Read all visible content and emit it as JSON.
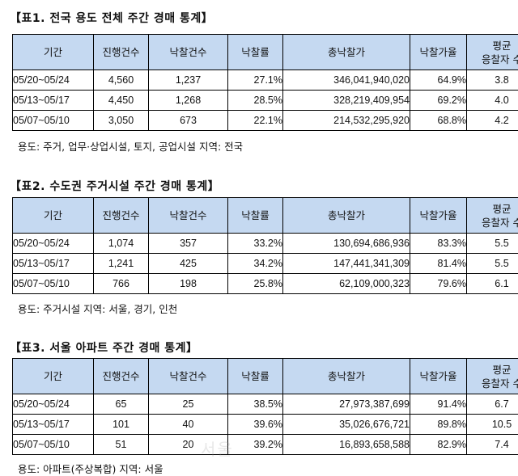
{
  "tables": [
    {
      "title": "【표1. 전국 용도 전체 주간 경매 통계】",
      "headers": [
        "기간",
        "진행건수",
        "낙찰건수",
        "낙찰률",
        "총낙찰가",
        "낙찰가율",
        "평균\n응찰자 수"
      ],
      "rows": [
        [
          "05/20~05/24",
          "4,560",
          "1,237",
          "27.1%",
          "346,041,940,020",
          "64.9%",
          "3.8"
        ],
        [
          "05/13~05/17",
          "4,450",
          "1,268",
          "28.5%",
          "328,219,409,954",
          "69.2%",
          "4.0"
        ],
        [
          "05/07~05/10",
          "3,050",
          "673",
          "22.1%",
          "214,532,295,920",
          "68.8%",
          "4.2"
        ]
      ],
      "note": "용도: 주거, 업무·상업시설, 토지, 공업시설    지역: 전국"
    },
    {
      "title": "【표2. 수도권 주거시설 주간 경매 통계】",
      "headers": [
        "기간",
        "진행건수",
        "낙찰건수",
        "낙찰률",
        "총낙찰가",
        "낙찰가율",
        "평균\n응찰자 수"
      ],
      "rows": [
        [
          "05/20~05/24",
          "1,074",
          "357",
          "33.2%",
          "130,694,686,936",
          "83.3%",
          "5.5"
        ],
        [
          "05/13~05/17",
          "1,241",
          "425",
          "34.2%",
          "147,441,341,309",
          "81.4%",
          "5.5"
        ],
        [
          "05/07~05/10",
          "766",
          "198",
          "25.8%",
          "62,109,000,323",
          "79.6%",
          "6.1"
        ]
      ],
      "note": "용도: 주거시설    지역: 서울, 경기, 인천"
    },
    {
      "title": "【표3. 서울 아파트 주간 경매 통계】",
      "headers": [
        "기간",
        "진행건수",
        "낙찰건수",
        "낙찰률",
        "총낙찰가",
        "낙찰가율",
        "평균\n응찰자 수"
      ],
      "rows": [
        [
          "05/20~05/24",
          "65",
          "25",
          "38.5%",
          "27,973,387,699",
          "91.4%",
          "6.7"
        ],
        [
          "05/13~05/17",
          "101",
          "40",
          "39.6%",
          "35,026,676,721",
          "89.8%",
          "10.5"
        ],
        [
          "05/07~05/10",
          "51",
          "20",
          "39.2%",
          "16,893,658,588",
          "82.9%",
          "7.4"
        ]
      ],
      "note": "용도: 아파트(주상복합)  지역: 서울"
    }
  ],
  "watermark": "서울",
  "colors": {
    "header_bg": "#c5d9f1",
    "border": "#000000"
  }
}
